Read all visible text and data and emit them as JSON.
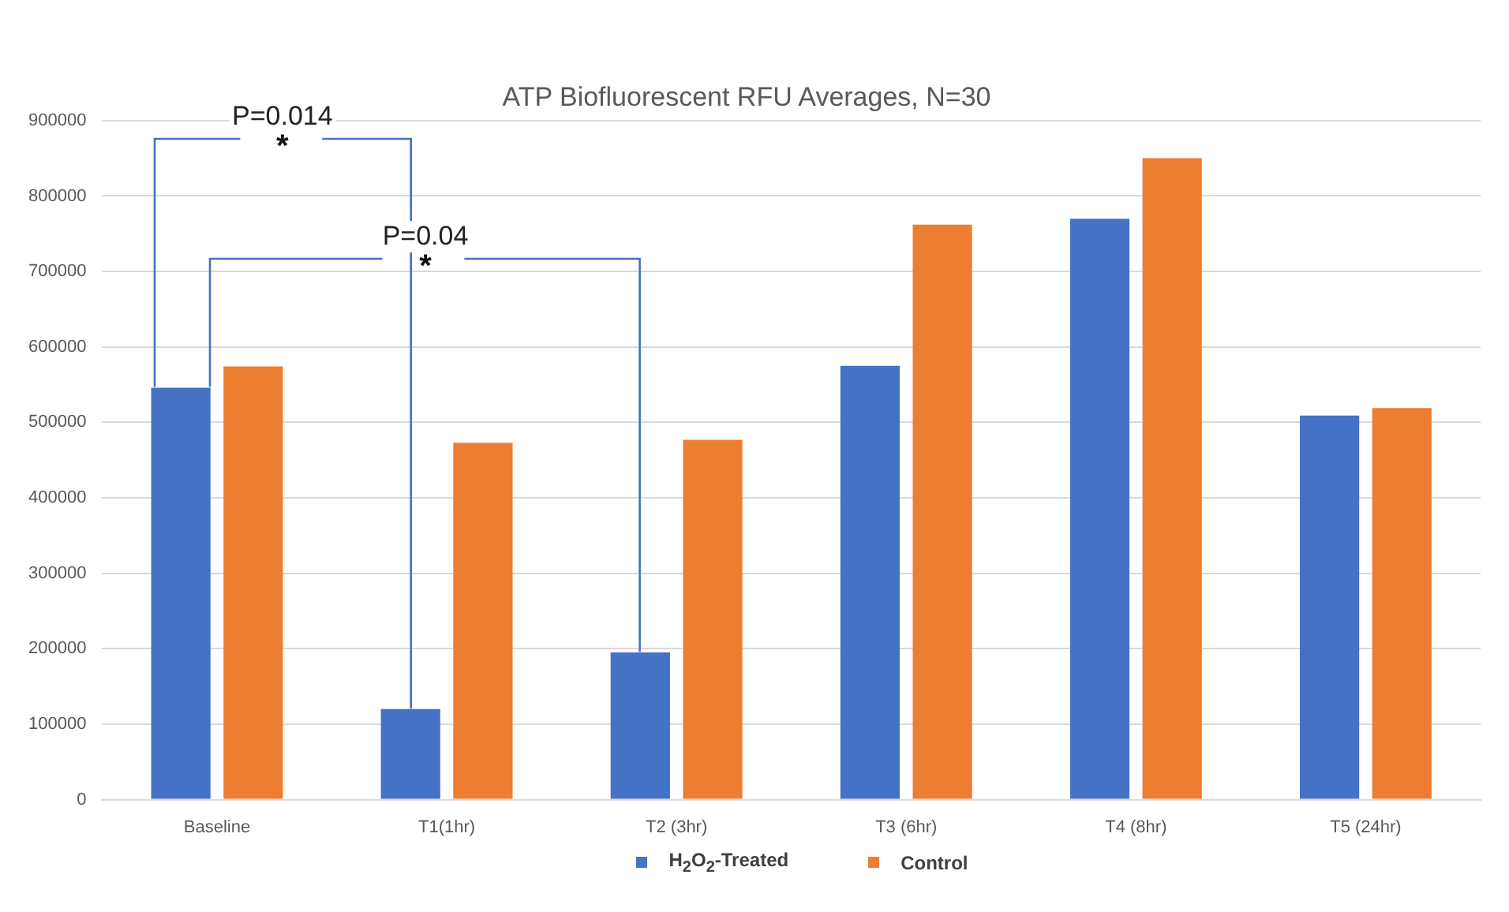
{
  "chart_data": {
    "type": "bar",
    "title": "ATP Biofluorescent RFU Averages, N=30",
    "categories": [
      "Baseline",
      "T1(1hr)",
      "T2 (3hr)",
      "T3 (6hr)",
      "T4 (8hr)",
      "T5 (24hr)"
    ],
    "series": [
      {
        "name": "H$_{2}$O$_{2}$-Treated",
        "color": "#4472c4",
        "values": [
          546000,
          120000,
          195000,
          575000,
          770000,
          509000
        ]
      },
      {
        "name": "Control",
        "color": "#ed7d31",
        "values": [
          574000,
          473000,
          477000,
          762000,
          850000,
          519000
        ]
      }
    ],
    "ylim": [
      0,
      900000
    ],
    "yticks": [
      0,
      100000,
      200000,
      300000,
      400000,
      500000,
      600000,
      700000,
      800000,
      900000
    ],
    "grid": "y",
    "legend": "bottom",
    "annotations": [
      "P=0.014",
      "*",
      "P=0.04",
      "*"
    ]
  }
}
